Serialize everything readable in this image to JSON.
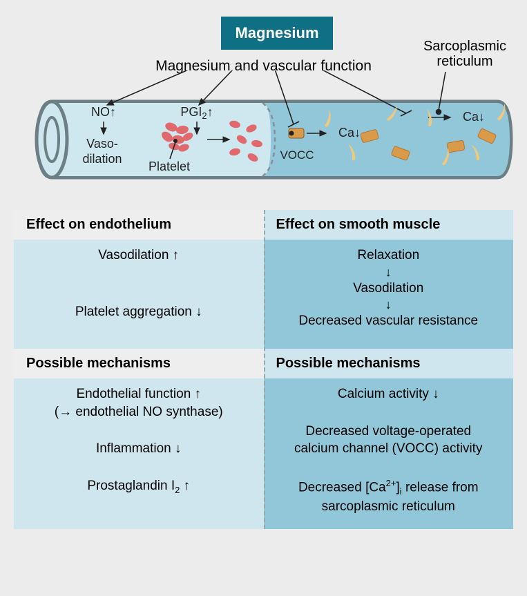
{
  "colors": {
    "page_bg": "#ececec",
    "mg_box": "#0f6f84",
    "mg_text": "#ffffff",
    "left_head_bg": "#eeeeee",
    "left_body_bg": "#cfe6ef",
    "right_head_bg": "#cfe6ef",
    "right_body_bg": "#91c7d8",
    "text": "#222222",
    "vessel_outer": "#6b7f85",
    "vessel_left_fill": "#cfe8ef",
    "vessel_right_fill": "#91c7d8",
    "vessel_face_fill": "#cfe8ef",
    "platelet": "#e0696e",
    "channel_body": "#d99a4a",
    "channel_body_dark": "#b5762f",
    "sr_wisp": "#f2c97a",
    "divider": "#9aa0a3"
  },
  "header": {
    "title": "Magnesium",
    "subtitle": "Magnesium and vascular function",
    "sr_label_l1": "Sarcoplasmic",
    "sr_label_l2": "reticulum"
  },
  "vessel_labels": {
    "no": "NO",
    "pgi2_pre": "PGI",
    "pgi2_sub": "2",
    "vaso1": "Vaso-",
    "vaso2": "dilation",
    "platelet": "Platelet",
    "vocc": "VOCC",
    "ca": "Ca"
  },
  "left": {
    "effect_head": "Effect on endothelium",
    "effects": {
      "vasodilation": "Vasodilation ↑",
      "platelet_agg": "Platelet aggregation ↓"
    },
    "mech_head": "Possible mechanisms",
    "mech": {
      "l1": "Endothelial function ↑",
      "l2": "(→ endothelial NO synthase)",
      "l3": "Inflammation ↓",
      "l4_pre": "Prostaglandin I",
      "l4_sub": "2",
      "l4_post": " ↑"
    }
  },
  "right": {
    "effect_head": "Effect on smooth muscle",
    "effects": {
      "relax": "Relaxation",
      "vaso": "Vasodilation",
      "dvr": "Decreased vascular resistance"
    },
    "mech_head": "Possible mechanisms",
    "mech": {
      "l1": "Calcium activity ↓",
      "l2a": "Decreased voltage-operated",
      "l2b": "calcium channel (VOCC) activity",
      "l3_pre": "Decreased [Ca",
      "l3_sup": "2+",
      "l3_sub": "i",
      "l3_mid": "]",
      "l3_post": " release from",
      "l4": "sarcoplasmic reticulum"
    }
  }
}
